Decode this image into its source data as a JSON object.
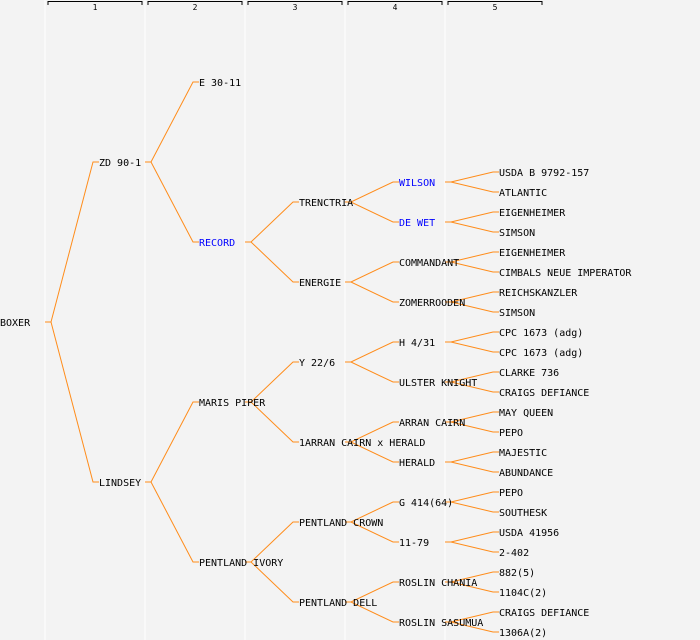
{
  "colors": {
    "line": "#ff8c1a",
    "text": "#000000",
    "highlight": "#0000ff",
    "separator": "#ffffff"
  },
  "generation_headers": [
    "1",
    "2",
    "3",
    "4",
    "5"
  ],
  "pedigree": {
    "name": "BOXER",
    "children": [
      {
        "name": "ZD 90-1",
        "children": [
          {
            "name": "E 30-11"
          },
          {
            "name": "RECORD",
            "highlight": true,
            "children": [
              {
                "name": "TRENCTRIA",
                "children": [
                  {
                    "name": "WILSON",
                    "highlight": true,
                    "children": [
                      {
                        "name": "USDA B 9792-157"
                      },
                      {
                        "name": "ATLANTIC"
                      }
                    ]
                  },
                  {
                    "name": "DE WET",
                    "highlight": true,
                    "children": [
                      {
                        "name": "EIGENHEIMER"
                      },
                      {
                        "name": "SIMSON"
                      }
                    ]
                  }
                ]
              },
              {
                "name": "ENERGIE",
                "children": [
                  {
                    "name": "COMMANDANT",
                    "children": [
                      {
                        "name": "EIGENHEIMER"
                      },
                      {
                        "name": "CIMBALS NEUE IMPERATOR"
                      }
                    ]
                  },
                  {
                    "name": "ZOMERROODEN",
                    "children": [
                      {
                        "name": "REICHSKANZLER"
                      },
                      {
                        "name": "SIMSON"
                      }
                    ]
                  }
                ]
              }
            ]
          }
        ]
      },
      {
        "name": "LINDSEY",
        "children": [
          {
            "name": "MARIS PIPER",
            "children": [
              {
                "name": "Y 22/6",
                "children": [
                  {
                    "name": "H 4/31",
                    "children": [
                      {
                        "name": "CPC 1673 (adg)"
                      },
                      {
                        "name": "CPC 1673 (adg)"
                      }
                    ]
                  },
                  {
                    "name": "ULSTER KNIGHT",
                    "children": [
                      {
                        "name": "CLARKE 736"
                      },
                      {
                        "name": "CRAIGS DEFIANCE"
                      }
                    ]
                  }
                ]
              },
              {
                "name": "1ARRAN CAIRN x HERALD",
                "children": [
                  {
                    "name": "ARRAN CAIRN",
                    "children": [
                      {
                        "name": "MAY QUEEN"
                      },
                      {
                        "name": "PEPO"
                      }
                    ]
                  },
                  {
                    "name": "HERALD",
                    "children": [
                      {
                        "name": "MAJESTIC"
                      },
                      {
                        "name": "ABUNDANCE"
                      }
                    ]
                  }
                ]
              }
            ]
          },
          {
            "name": "PENTLAND IVORY",
            "children": [
              {
                "name": "PENTLAND CROWN",
                "children": [
                  {
                    "name": "G 414(64)",
                    "children": [
                      {
                        "name": "PEPO"
                      },
                      {
                        "name": "SOUTHESK"
                      }
                    ]
                  },
                  {
                    "name": "11-79",
                    "children": [
                      {
                        "name": "USDA 41956"
                      },
                      {
                        "name": "2-402"
                      }
                    ]
                  }
                ]
              },
              {
                "name": "PENTLAND DELL",
                "children": [
                  {
                    "name": "ROSLIN CHANIA",
                    "children": [
                      {
                        "name": "882(5)"
                      },
                      {
                        "name": "1104C(2)"
                      }
                    ]
                  },
                  {
                    "name": "ROSLIN SASUMUA",
                    "children": [
                      {
                        "name": "CRAIGS DEFIANCE"
                      },
                      {
                        "name": "1306A(2)"
                      }
                    ]
                  }
                ]
              }
            ]
          }
        ]
      }
    ]
  }
}
